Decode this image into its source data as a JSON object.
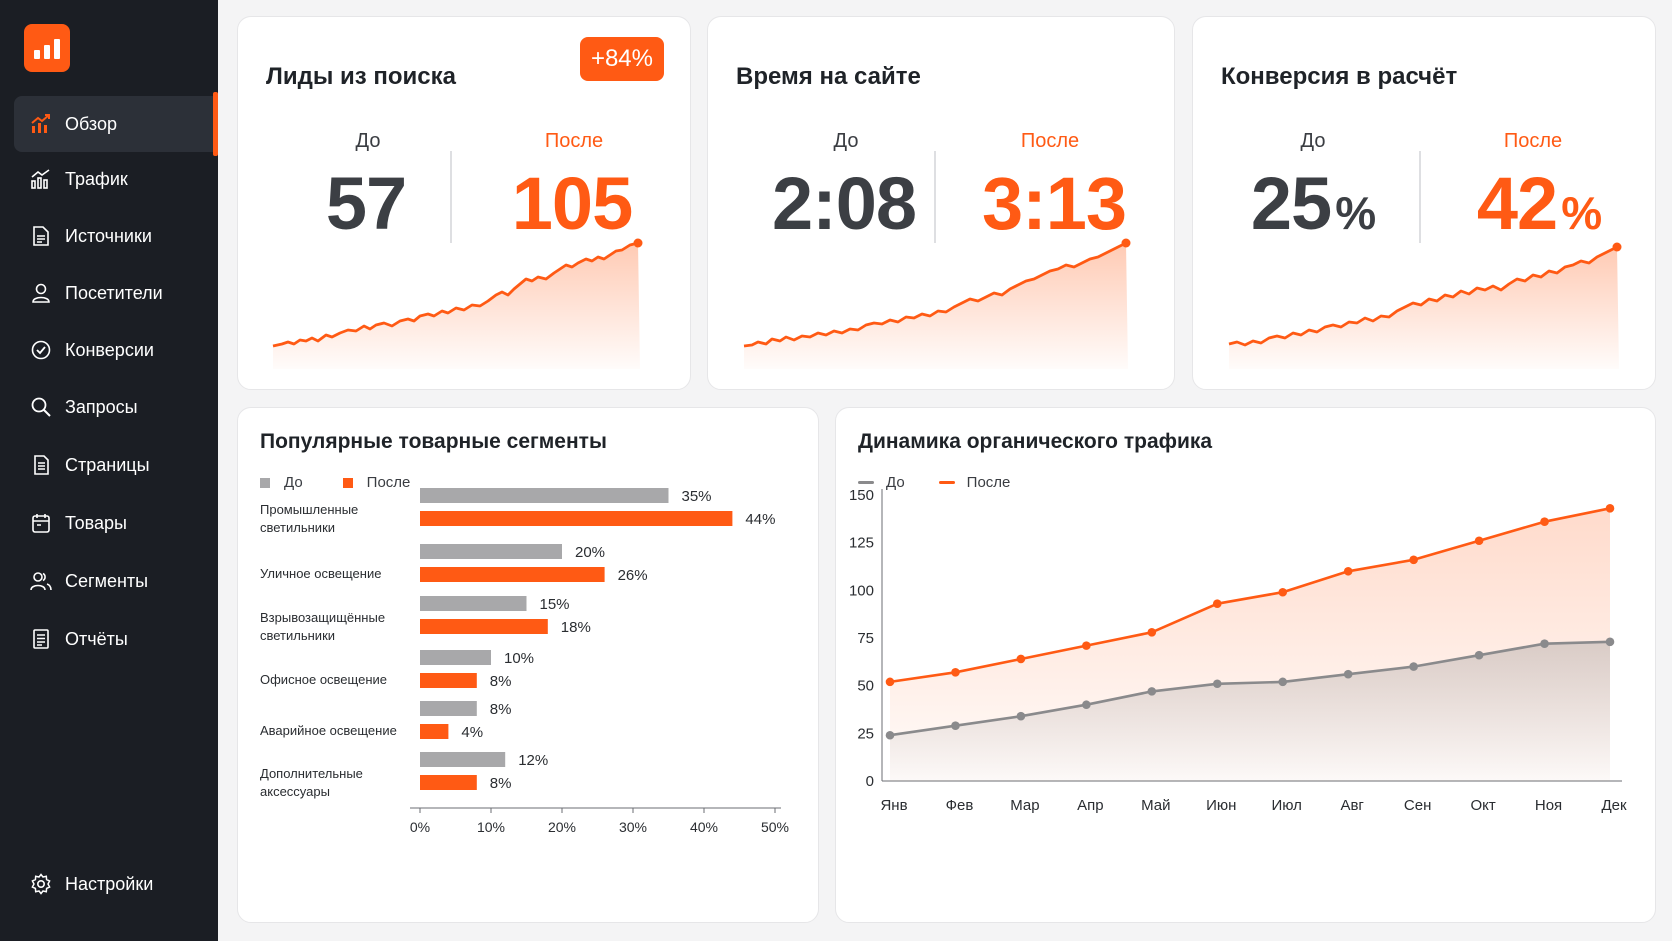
{
  "sidebar": {
    "items": [
      {
        "label": "Обзор",
        "icon": "chart-up-icon"
      },
      {
        "label": "Трафик",
        "icon": "traffic-chart-icon"
      },
      {
        "label": "Источники",
        "icon": "document-icon"
      },
      {
        "label": "Посетители",
        "icon": "user-icon"
      },
      {
        "label": "Конверсии",
        "icon": "check-circle-icon"
      },
      {
        "label": "Запросы",
        "icon": "search-icon"
      },
      {
        "label": "Страницы",
        "icon": "pages-icon"
      },
      {
        "label": "Товары",
        "icon": "calendar-box-icon"
      },
      {
        "label": "Сегменты",
        "icon": "users-icon"
      },
      {
        "label": "Отчёты",
        "icon": "report-icon"
      }
    ],
    "settings": {
      "label": "Настройки",
      "icon": "gear-icon"
    },
    "active_index": 0
  },
  "colors": {
    "accent": "#ff5a14",
    "before": "#a8a8aa",
    "sidebar": "#1b1e24"
  },
  "kpis": [
    {
      "title": "Лиды из поиска",
      "badge": "+84%",
      "before_label": "До",
      "after_label": "После",
      "before_value": "57",
      "after_value": "105",
      "before_unit": "",
      "after_unit": ""
    },
    {
      "title": "Время на сайте",
      "badge": "",
      "before_label": "До",
      "after_label": "После",
      "before_value": "2:08",
      "after_value": "3:13",
      "before_unit": "",
      "after_unit": ""
    },
    {
      "title": "Конверсия в расчёт",
      "badge": "",
      "before_label": "До",
      "after_label": "После",
      "before_value": "25",
      "after_value": "42",
      "before_unit": "%",
      "after_unit": "%"
    }
  ],
  "chart_data": [
    {
      "type": "bar",
      "title": "Популярные товарные сегменты",
      "categories": [
        [
          "Промышленные",
          "светильники"
        ],
        [
          "Уличное освещение"
        ],
        [
          "Взрывозащищённые",
          "светильники"
        ],
        [
          "Офисное освещение"
        ],
        [
          "Аварийное освещение"
        ],
        [
          "Дополнительные",
          "аксессуары"
        ]
      ],
      "series": [
        {
          "name": "До",
          "values": [
            35,
            20,
            15,
            10,
            8,
            12
          ],
          "labels": [
            "35%",
            "20%",
            "15%",
            "10%",
            "8%",
            "12%"
          ]
        },
        {
          "name": "После",
          "values": [
            44,
            26,
            18,
            8,
            4,
            8
          ],
          "labels": [
            "44%",
            "26%",
            "18%",
            "8%",
            "4%",
            "8%"
          ]
        }
      ],
      "xlim": [
        0,
        50
      ],
      "x_ticks": [
        "0%",
        "10%",
        "20%",
        "30%",
        "40%",
        "50%"
      ],
      "orientation": "horizontal"
    },
    {
      "type": "area",
      "title": "Динамика органического трафика",
      "x": [
        "Янв",
        "Фев",
        "Мар",
        "Апр",
        "Май",
        "Июн",
        "Июл",
        "Авг",
        "Сен",
        "Окт",
        "Ноя",
        "Дек"
      ],
      "series": [
        {
          "name": "До",
          "values": [
            24,
            29,
            34,
            40,
            47,
            51,
            52,
            56,
            60,
            66,
            72,
            73
          ]
        },
        {
          "name": "После",
          "values": [
            52,
            57,
            64,
            71,
            78,
            93,
            99,
            110,
            116,
            126,
            136,
            143
          ]
        }
      ],
      "ylim": [
        0,
        150
      ],
      "y_ticks": [
        "0",
        "25",
        "50",
        "75",
        "100",
        "125",
        "150"
      ],
      "grid": false
    }
  ]
}
